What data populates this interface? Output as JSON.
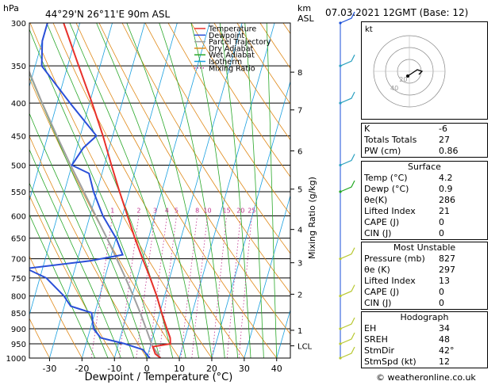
{
  "header": {
    "pressure_unit": "hPa",
    "location": "44°29'N  26°11'E  90m  ASL",
    "alt_unit_km": "km",
    "alt_unit_asl": "ASL",
    "datetime": "07.03.2021  12GMT  (Base: 12)"
  },
  "legend": [
    {
      "label": "Temperature",
      "color": "#e8302a",
      "style": "solid"
    },
    {
      "label": "Dewpoint",
      "color": "#2a4fd8",
      "style": "solid"
    },
    {
      "label": "Parcel Trajectory",
      "color": "#a0a0a0",
      "style": "solid"
    },
    {
      "label": "Dry Adiabat",
      "color": "#e08a1a",
      "style": "solid"
    },
    {
      "label": "Wet Adiabat",
      "color": "#2aa82a",
      "style": "solid"
    },
    {
      "label": "Isotherm",
      "color": "#1aa0e0",
      "style": "solid"
    },
    {
      "label": "Mixing Ratio",
      "color": "#c0308c",
      "style": "dotted"
    }
  ],
  "chart_data": {
    "type": "skew-t",
    "xlabel": "Dewpoint / Temperature (°C)",
    "mixing_ratio_axis_label": "Mixing Ratio (g/kg)",
    "x_ticks": [
      -30,
      -20,
      -10,
      0,
      10,
      20,
      30,
      40
    ],
    "pressure_levels": [
      300,
      350,
      400,
      450,
      500,
      550,
      600,
      650,
      700,
      750,
      800,
      850,
      900,
      950,
      1000
    ],
    "km_ticks": [
      {
        "label": "8",
        "p": 358
      },
      {
        "label": "7",
        "p": 410
      },
      {
        "label": "6",
        "p": 475
      },
      {
        "label": "5",
        "p": 545
      },
      {
        "label": "4",
        "p": 630
      },
      {
        "label": "3",
        "p": 710
      },
      {
        "label": "2",
        "p": 795
      },
      {
        "label": "1",
        "p": 905
      },
      {
        "label": "LCL",
        "p": 957
      }
    ],
    "mixing_ratio_labels": [
      "1",
      "2",
      "3",
      "4",
      "5",
      "8",
      "10",
      "15",
      "20",
      "25"
    ],
    "mixing_ratio_values": [
      1,
      2,
      3,
      4,
      5,
      8,
      10,
      15,
      20,
      25
    ],
    "temperature_profile": [
      {
        "p": 1000,
        "t": 4.2
      },
      {
        "p": 985,
        "t": 2.2
      },
      {
        "p": 960,
        "t": 0.8
      },
      {
        "p": 950,
        "t": 6.0
      },
      {
        "p": 930,
        "t": 5.4
      },
      {
        "p": 900,
        "t": 3.6
      },
      {
        "p": 850,
        "t": 0.6
      },
      {
        "p": 800,
        "t": -2.4
      },
      {
        "p": 750,
        "t": -6.0
      },
      {
        "p": 700,
        "t": -10.0
      },
      {
        "p": 650,
        "t": -14.2
      },
      {
        "p": 600,
        "t": -18.4
      },
      {
        "p": 550,
        "t": -23.0
      },
      {
        "p": 500,
        "t": -27.8
      },
      {
        "p": 450,
        "t": -33.0
      },
      {
        "p": 400,
        "t": -39.2
      },
      {
        "p": 350,
        "t": -46.6
      },
      {
        "p": 300,
        "t": -55.0
      }
    ],
    "dewpoint_profile": [
      {
        "p": 1000,
        "t": 0.9
      },
      {
        "p": 970,
        "t": -2.0
      },
      {
        "p": 950,
        "t": -8.0
      },
      {
        "p": 930,
        "t": -16.0
      },
      {
        "p": 900,
        "t": -19.0
      },
      {
        "p": 850,
        "t": -21.0
      },
      {
        "p": 830,
        "t": -28.0
      },
      {
        "p": 800,
        "t": -31.0
      },
      {
        "p": 750,
        "t": -38.0
      },
      {
        "p": 725,
        "t": -45.0
      },
      {
        "p": 705,
        "t": -26.0
      },
      {
        "p": 690,
        "t": -16.5
      },
      {
        "p": 650,
        "t": -20.0
      },
      {
        "p": 600,
        "t": -26.0
      },
      {
        "p": 550,
        "t": -31.0
      },
      {
        "p": 515,
        "t": -34.0
      },
      {
        "p": 500,
        "t": -40.0
      },
      {
        "p": 470,
        "t": -38.0
      },
      {
        "p": 450,
        "t": -35.0
      },
      {
        "p": 400,
        "t": -46.0
      },
      {
        "p": 350,
        "t": -58.0
      },
      {
        "p": 320,
        "t": -60.0
      },
      {
        "p": 300,
        "t": -60.0
      }
    ],
    "parcel_profile": [
      {
        "p": 1000,
        "t": 4.2
      },
      {
        "p": 957,
        "t": 0.6
      },
      {
        "p": 900,
        "t": -2.8
      },
      {
        "p": 850,
        "t": -6.0
      },
      {
        "p": 800,
        "t": -9.6
      },
      {
        "p": 750,
        "t": -13.6
      },
      {
        "p": 700,
        "t": -18.0
      },
      {
        "p": 650,
        "t": -22.8
      },
      {
        "p": 600,
        "t": -28.2
      },
      {
        "p": 550,
        "t": -34.0
      },
      {
        "p": 500,
        "t": -40.4
      },
      {
        "p": 450,
        "t": -47.2
      },
      {
        "p": 400,
        "t": -54.6
      },
      {
        "p": 350,
        "t": -62.6
      },
      {
        "p": 300,
        "t": -71.0
      }
    ],
    "wind_barbs": [
      {
        "p": 300,
        "color": "#1a4fd8"
      },
      {
        "p": 350,
        "color": "#2aa0c0"
      },
      {
        "p": 400,
        "color": "#2aa0c0"
      },
      {
        "p": 500,
        "color": "#2aa0c0"
      },
      {
        "p": 550,
        "color": "#22a822"
      },
      {
        "p": 700,
        "color": "#b8c832"
      },
      {
        "p": 800,
        "color": "#b8c832"
      },
      {
        "p": 900,
        "color": "#b8c832"
      },
      {
        "p": 950,
        "color": "#b8c832"
      },
      {
        "p": 1000,
        "color": "#b8c832"
      }
    ]
  },
  "hodograph": {
    "unit": "kt",
    "ring_labels": [
      "20",
      "40"
    ]
  },
  "indices": [
    {
      "label": "K",
      "value": "-6"
    },
    {
      "label": "Totals Totals",
      "value": "27"
    },
    {
      "label": "PW (cm)",
      "value": "0.86"
    }
  ],
  "surface": {
    "title": "Surface",
    "rows": [
      {
        "label": "Temp (°C)",
        "value": "4.2"
      },
      {
        "label": "Dewp (°C)",
        "value": "0.9"
      },
      {
        "label": "θe(K)",
        "value": "286"
      },
      {
        "label": "Lifted Index",
        "value": "21"
      },
      {
        "label": "CAPE (J)",
        "value": "0"
      },
      {
        "label": "CIN (J)",
        "value": "0"
      }
    ]
  },
  "most_unstable": {
    "title": "Most Unstable",
    "rows": [
      {
        "label": "Pressure (mb)",
        "value": "827"
      },
      {
        "label": "θe (K)",
        "value": "297"
      },
      {
        "label": "Lifted Index",
        "value": "13"
      },
      {
        "label": "CAPE (J)",
        "value": "0"
      },
      {
        "label": "CIN (J)",
        "value": "0"
      }
    ]
  },
  "hodograph_stats": {
    "title": "Hodograph",
    "rows": [
      {
        "label": "EH",
        "value": "34"
      },
      {
        "label": "SREH",
        "value": "48"
      },
      {
        "label": "StmDir",
        "value": "42°"
      },
      {
        "label": "StmSpd (kt)",
        "value": "12"
      }
    ]
  },
  "credit": "© weatheronline.co.uk"
}
